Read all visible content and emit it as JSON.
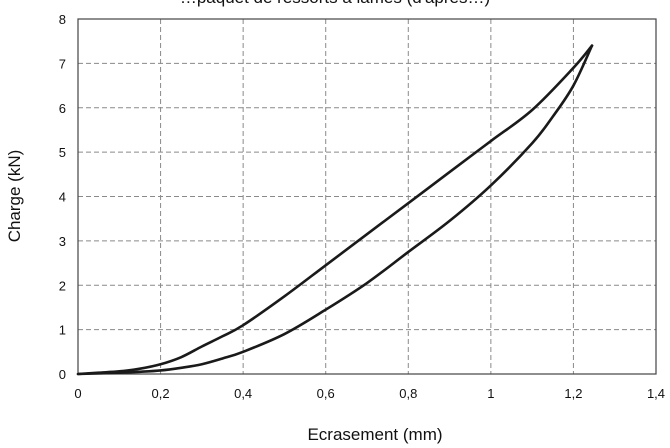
{
  "chart_data": {
    "type": "line",
    "title": "…paquet de ressorts à lames (d'après…)",
    "xlabel": "Ecrasement (mm)",
    "ylabel": "Charge (kN)",
    "xlim": [
      0,
      1.4
    ],
    "ylim": [
      0,
      8
    ],
    "xticks": [
      "0",
      "0,2",
      "0,4",
      "0,6",
      "0,8",
      "1",
      "1,2",
      "1,4"
    ],
    "yticks": [
      "0",
      "1",
      "2",
      "3",
      "4",
      "5",
      "6",
      "7",
      "8"
    ],
    "grid": true,
    "legend": "none",
    "series": [
      {
        "x": [
          0,
          0.05,
          0.1,
          0.15,
          0.2,
          0.25,
          0.3,
          0.35,
          0.4,
          0.5,
          0.6,
          0.7,
          0.8,
          0.9,
          1.0,
          1.1,
          1.2,
          1.245
        ],
        "y": [
          0,
          0.03,
          0.06,
          0.12,
          0.22,
          0.38,
          0.62,
          0.85,
          1.1,
          1.75,
          2.45,
          3.15,
          3.85,
          4.55,
          5.25,
          5.95,
          6.9,
          7.4
        ],
        "color": "#1a1a1a"
      },
      {
        "x": [
          0,
          0.1,
          0.15,
          0.2,
          0.25,
          0.3,
          0.35,
          0.4,
          0.5,
          0.6,
          0.7,
          0.8,
          0.9,
          1.0,
          1.1,
          1.15,
          1.2,
          1.245
        ],
        "y": [
          0,
          0.03,
          0.05,
          0.08,
          0.14,
          0.22,
          0.35,
          0.5,
          0.9,
          1.45,
          2.05,
          2.75,
          3.45,
          4.25,
          5.2,
          5.8,
          6.5,
          7.4
        ],
        "color": "#1a1a1a"
      }
    ]
  }
}
